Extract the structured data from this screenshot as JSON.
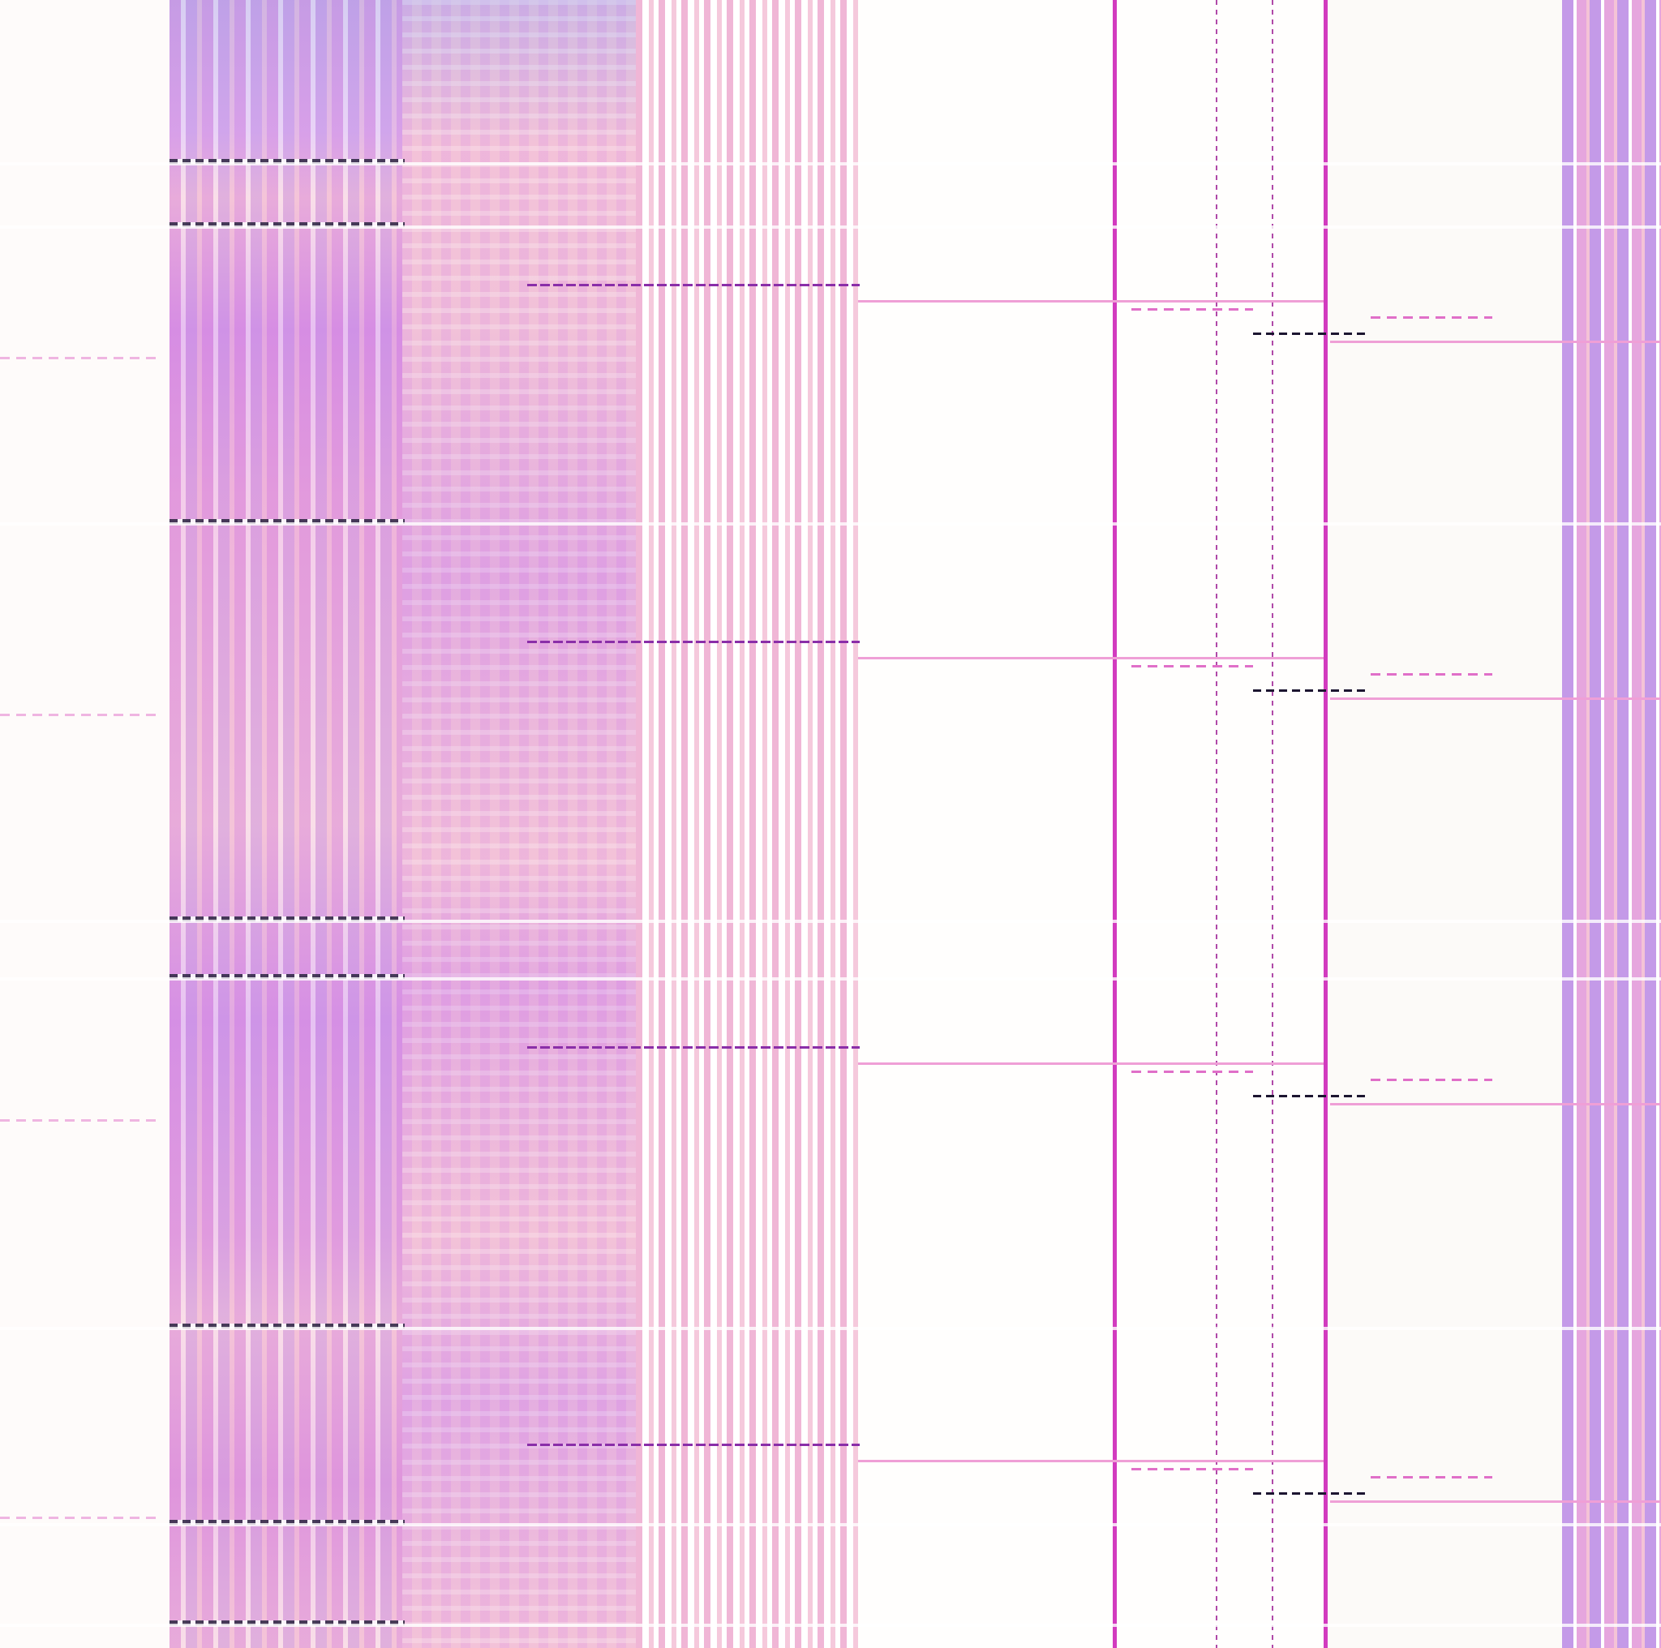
{
  "palette": {
    "magenta": "#d23bbf",
    "violet": "#c99ae6",
    "pink": "#f4c3d6",
    "orchid": "#d98ee0",
    "background": "#fefcfb",
    "dark": "#2a2440"
  },
  "description_tags": [
    "vertical-stripes",
    "grid-pattern",
    "dashed-lines"
  ]
}
